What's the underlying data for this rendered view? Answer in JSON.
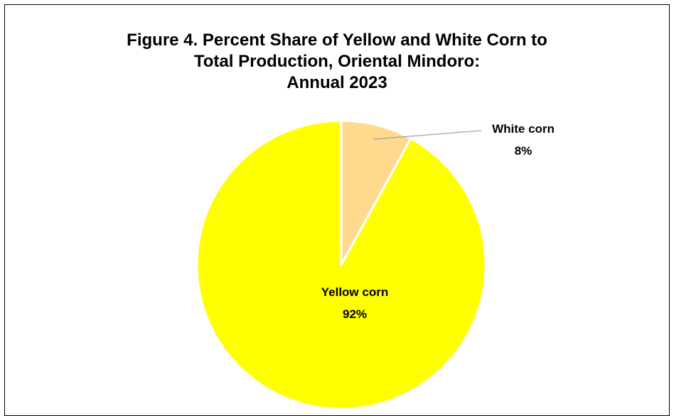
{
  "chart_data": {
    "type": "pie",
    "title": "Figure 4. Percent Share of Yellow and White Corn to Total Production, Oriental Mindoro: Annual 2023",
    "title_lines": [
      "Figure 4. Percent Share of Yellow and White Corn to",
      "Total Production, Oriental Mindoro:",
      "Annual 2023"
    ],
    "categories": [
      "White corn",
      "Yellow corn"
    ],
    "values": [
      8,
      92
    ],
    "value_labels": [
      "8%",
      "92%"
    ],
    "colors": [
      "#FFD98E",
      "#FFFF00"
    ],
    "start_angle_deg": 0,
    "direction": "clockwise",
    "legend": "none"
  }
}
